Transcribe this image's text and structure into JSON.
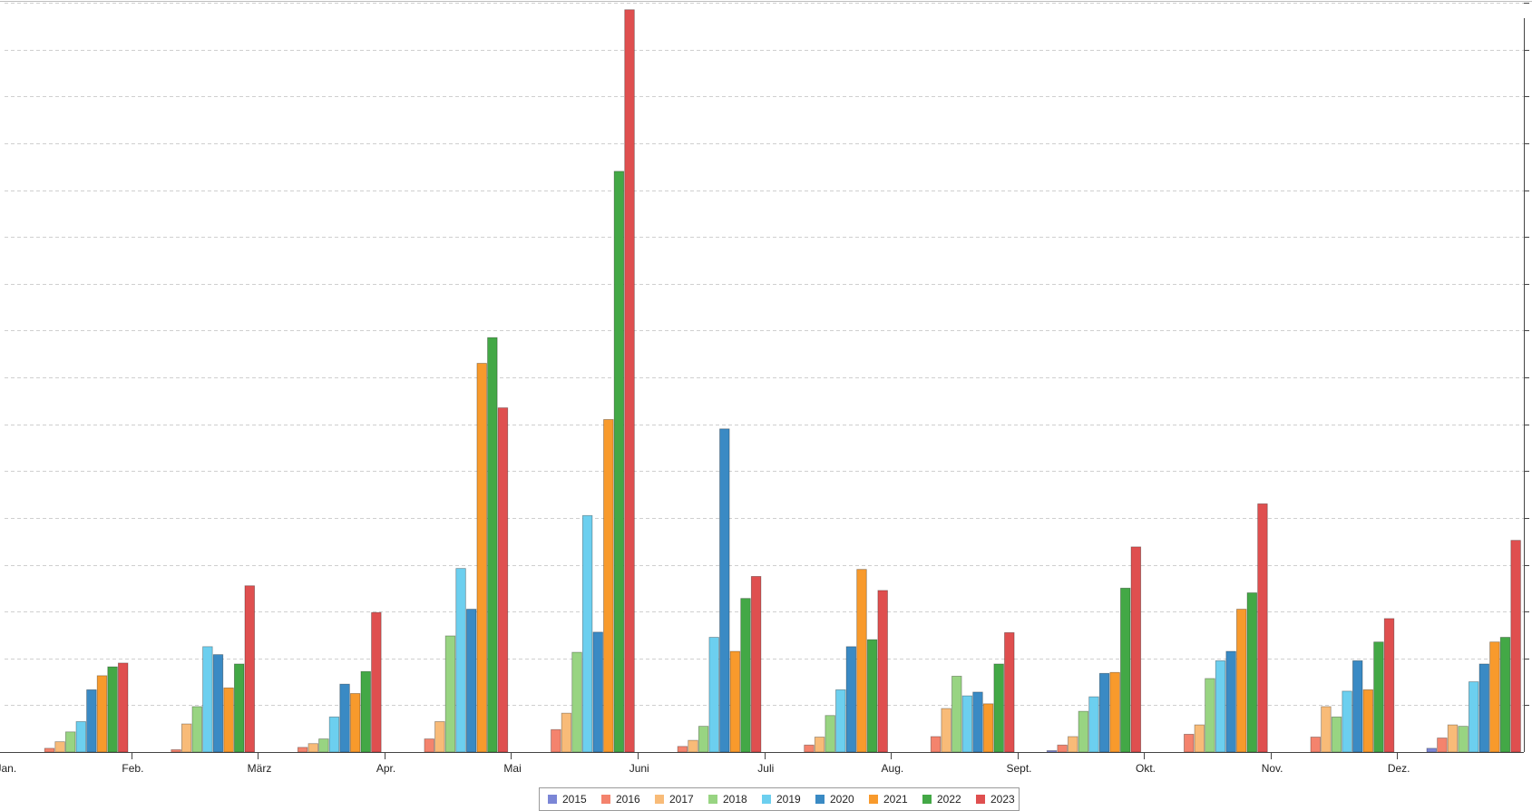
{
  "chart_data": {
    "type": "bar",
    "title": "",
    "xlabel": "",
    "ylabel": "",
    "ylim": [
      0,
      16
    ],
    "grid": true,
    "legend_position": "bottom",
    "categories": [
      "Jan.",
      "Feb.",
      "März",
      "Apr.",
      "Mai",
      "Juni",
      "Juli",
      "Aug.",
      "Sept.",
      "Okt.",
      "Nov.",
      "Dez."
    ],
    "series": [
      {
        "name": "2015",
        "color": "#7b86d6",
        "values": [
          0,
          0,
          0,
          0,
          0,
          0,
          0,
          0,
          0.03,
          0,
          0,
          0.08
        ]
      },
      {
        "name": "2016",
        "color": "#f4836d",
        "values": [
          0.08,
          0.05,
          0.1,
          0.28,
          0.48,
          0.12,
          0.15,
          0.33,
          0.15,
          0.38,
          0.32,
          0.3
        ]
      },
      {
        "name": "2017",
        "color": "#f8bb78",
        "values": [
          0.22,
          0.6,
          0.18,
          0.65,
          0.83,
          0.25,
          0.32,
          0.93,
          0.33,
          0.58,
          0.97,
          0.58
        ]
      },
      {
        "name": "2018",
        "color": "#98d482",
        "values": [
          0.43,
          0.97,
          0.28,
          2.48,
          2.13,
          0.55,
          0.78,
          1.62,
          0.87,
          1.57,
          0.75,
          0.55
        ]
      },
      {
        "name": "2019",
        "color": "#6ccfef",
        "values": [
          0.65,
          2.25,
          0.75,
          3.92,
          5.05,
          2.45,
          1.33,
          1.2,
          1.18,
          1.95,
          1.3,
          1.5
        ]
      },
      {
        "name": "2020",
        "color": "#3a8ac4",
        "values": [
          1.33,
          2.08,
          1.45,
          3.05,
          2.56,
          6.9,
          2.25,
          1.28,
          1.68,
          2.15,
          1.95,
          1.88
        ]
      },
      {
        "name": "2021",
        "color": "#f89a2c",
        "values": [
          1.63,
          1.37,
          1.25,
          8.3,
          7.1,
          2.15,
          3.9,
          1.03,
          1.7,
          3.05,
          1.33,
          2.35
        ]
      },
      {
        "name": "2022",
        "color": "#43a846",
        "values": [
          1.82,
          1.88,
          1.72,
          8.85,
          12.4,
          3.28,
          2.4,
          1.88,
          3.5,
          3.4,
          2.35,
          2.45
        ]
      },
      {
        "name": "2023",
        "color": "#df4f4f",
        "values": [
          1.9,
          3.55,
          2.98,
          7.35,
          15.85,
          3.75,
          3.45,
          2.55,
          4.38,
          5.3,
          2.85,
          4.52
        ]
      }
    ]
  }
}
